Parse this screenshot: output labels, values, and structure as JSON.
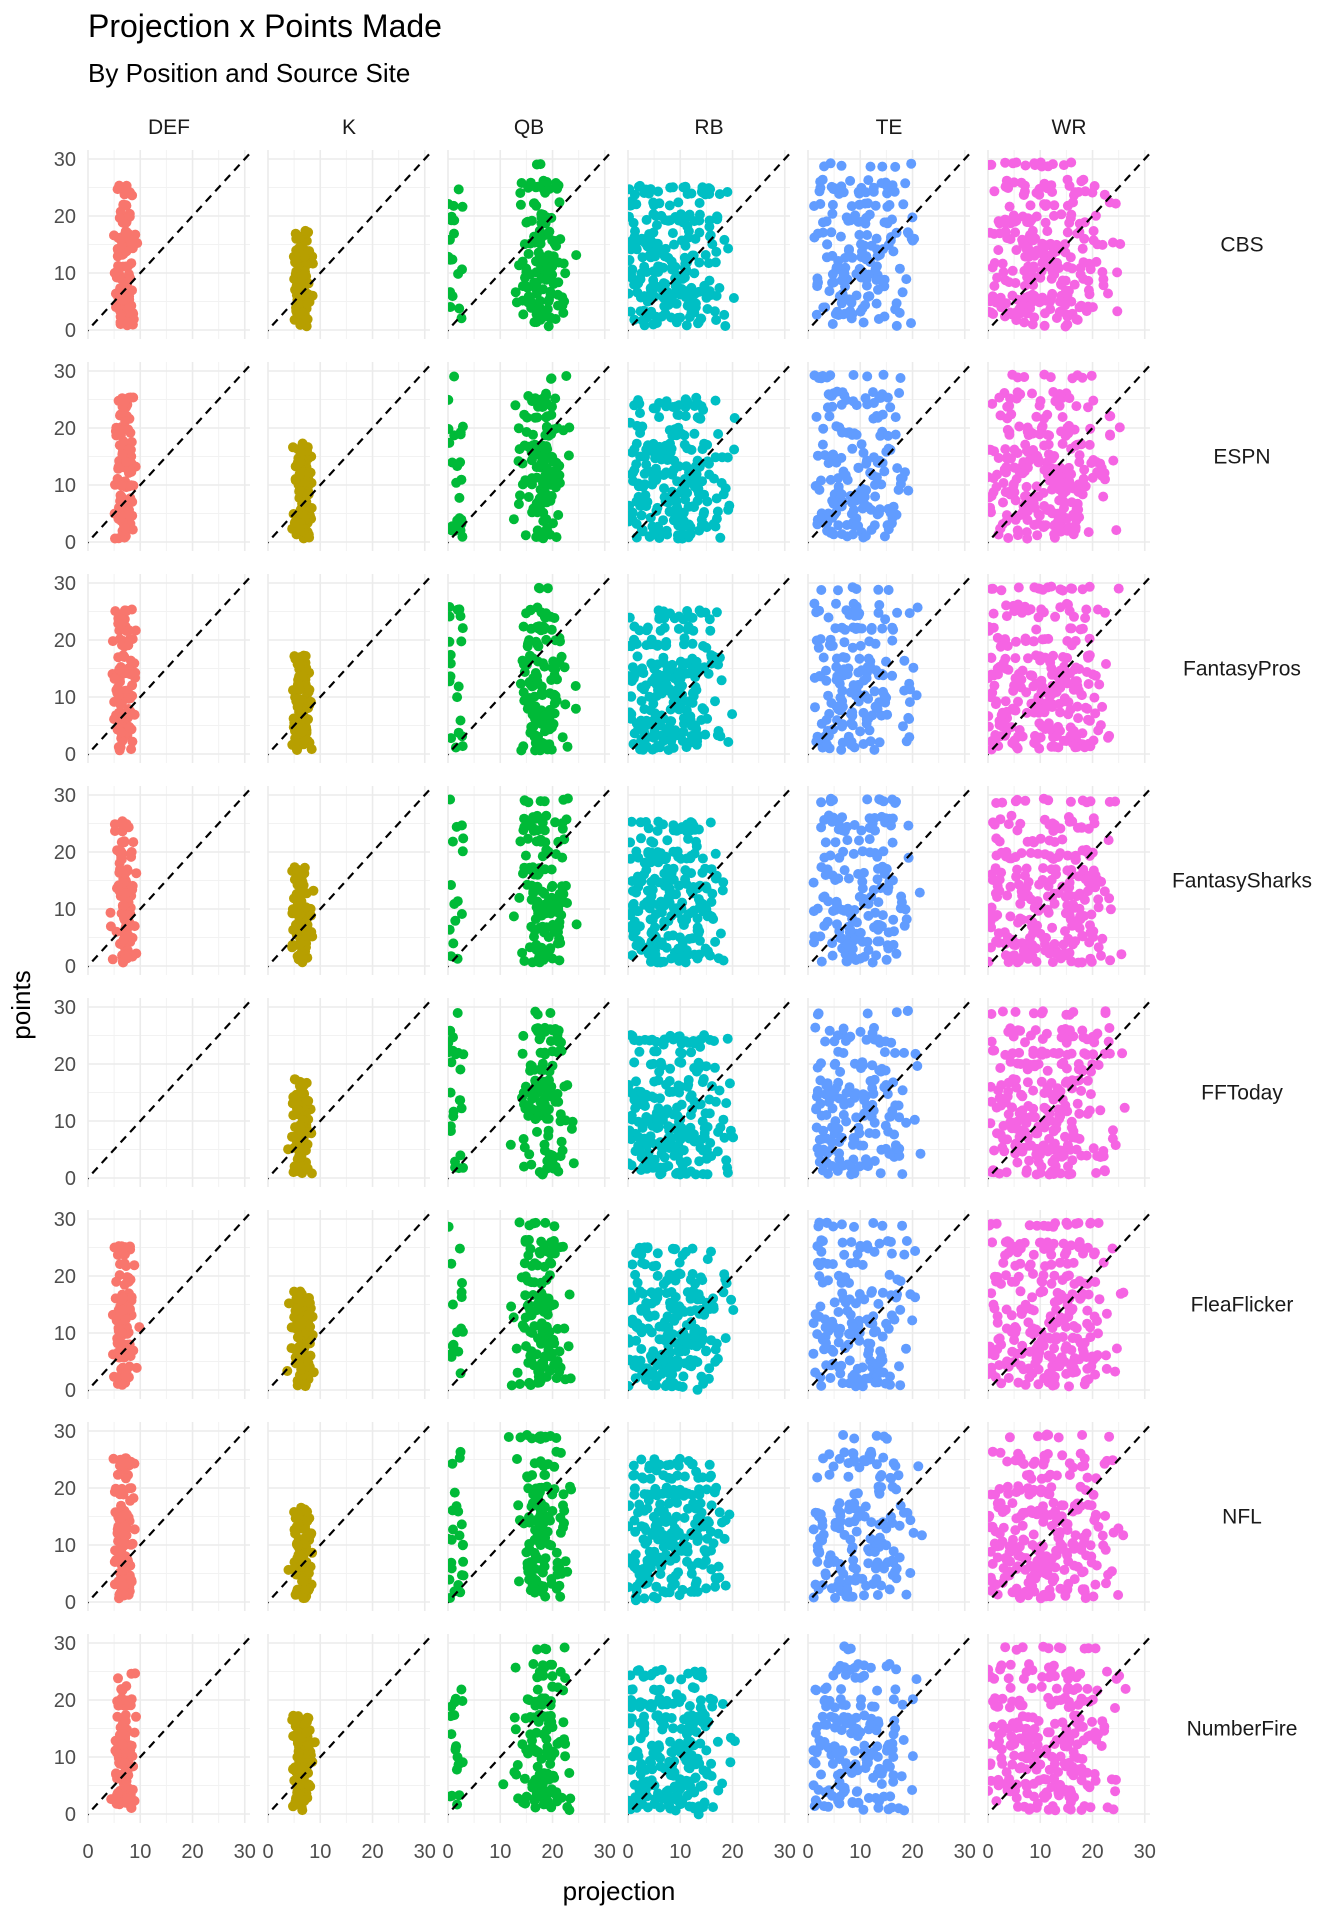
{
  "chart_data": {
    "type": "scatter",
    "title": "Projection x Points Made",
    "subtitle": "By Position and Source Site",
    "xlabel": "projection",
    "ylabel": "points",
    "xlim": [
      0,
      31
    ],
    "ylim": [
      0,
      30
    ],
    "x_ticks": [
      "0",
      "10",
      "20",
      "30"
    ],
    "y_ticks": [
      "0",
      "10",
      "20",
      "30"
    ],
    "grid": true,
    "legend": "none",
    "reference_line": "y = x (dashed, black)",
    "positions": [
      "DEF",
      "K",
      "QB",
      "RB",
      "TE",
      "WR"
    ],
    "sources": [
      "CBS",
      "ESPN",
      "FantasyPros",
      "FantasySharks",
      "FFToday",
      "FleaFlicker",
      "NFL",
      "NumberFire"
    ],
    "colors": {
      "DEF": "#F8766D",
      "K": "#B79F00",
      "QB": "#00BA38",
      "RB": "#00BFC4",
      "TE": "#619CFF",
      "WR": "#F564E3"
    },
    "missing_panels": [
      [
        "FFToday",
        "DEF"
      ]
    ],
    "position_ranges": {
      "DEF": {
        "x": [
          3,
          11
        ],
        "y": [
          1,
          25
        ]
      },
      "K": {
        "x": [
          3,
          10
        ],
        "y": [
          1,
          17
        ]
      },
      "QB": {
        "x": [
          0,
          28
        ],
        "y": [
          0,
          29
        ]
      },
      "RB": {
        "x": [
          0,
          21
        ],
        "y": [
          0,
          25
        ]
      },
      "TE": {
        "x": [
          1,
          22
        ],
        "y": [
          0,
          29
        ]
      },
      "WR": {
        "x": [
          0,
          27
        ],
        "y": [
          0,
          29
        ]
      }
    }
  }
}
